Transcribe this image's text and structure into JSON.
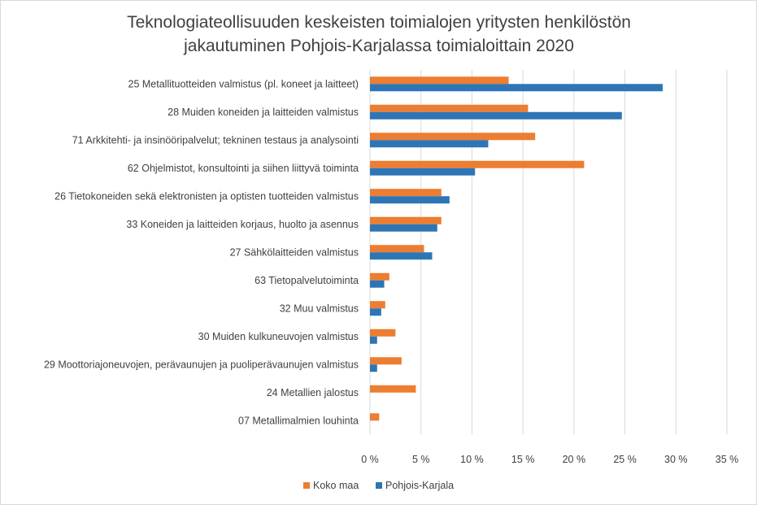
{
  "chart_data": {
    "type": "bar",
    "orientation": "horizontal",
    "title_lines": [
      "Teknologiateollisuuden keskeisten toimialojen yritysten henkilöstön",
      "jakautuminen Pohjois-Karjalassa toimialoittain 2020"
    ],
    "categories": [
      "25 Metallituotteiden valmistus (pl. koneet ja laitteet)",
      "28 Muiden koneiden ja laitteiden valmistus",
      "71 Arkkitehti- ja insinööripalvelut; tekninen testaus ja analysointi",
      "62 Ohjelmistot, konsultointi ja siihen liittyvä toiminta",
      "26 Tietokoneiden sekä elektronisten ja optisten tuotteiden valmistus",
      "33 Koneiden ja laitteiden korjaus, huolto ja asennus",
      "27 Sähkölaitteiden valmistus",
      "63 Tietopalvelutoiminta",
      "32 Muu valmistus",
      "30 Muiden kulkuneuvojen valmistus",
      "29 Moottoriajoneuvojen, perävaunujen ja puoliperävaunujen valmistus",
      "24 Metallien jalostus",
      "07 Metallimalmien louhinta"
    ],
    "series": [
      {
        "name": "Koko maa",
        "color": "#ED7D31",
        "values": [
          13.6,
          15.5,
          16.2,
          21.0,
          7.0,
          7.0,
          5.3,
          1.9,
          1.5,
          2.5,
          3.1,
          4.5,
          0.9
        ]
      },
      {
        "name": "Pohjois-Karjala",
        "color": "#2E75B6",
        "values": [
          28.7,
          24.7,
          11.6,
          10.3,
          7.8,
          6.6,
          6.1,
          1.4,
          1.1,
          0.7,
          0.7,
          0.0,
          0.0
        ]
      }
    ],
    "xlim": [
      0,
      35
    ],
    "xticks": [
      0,
      5,
      10,
      15,
      20,
      25,
      30,
      35
    ],
    "tick_labels": [
      "0 %",
      "5 %",
      "10 %",
      "15 %",
      "20 %",
      "25 %",
      "30 %",
      "35 %"
    ],
    "grid": true,
    "legend_position": "bottom",
    "xlabel": "",
    "ylabel": ""
  }
}
